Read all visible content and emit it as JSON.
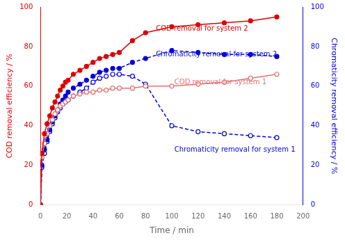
{
  "chart_data": {
    "type": "line",
    "x_label": "Time / min",
    "y_label": "COD removal efficiency / %",
    "y2_label": "Chromaticity removal efficiency / %",
    "xlim": [
      0,
      200
    ],
    "xticks": [
      0,
      20,
      40,
      60,
      80,
      100,
      120,
      140,
      160,
      180,
      200
    ],
    "ylim": [
      0,
      100
    ],
    "yticks": [
      0,
      20,
      40,
      60,
      80,
      100
    ],
    "y2lim": [
      0,
      100
    ],
    "y2ticks": [
      0,
      20,
      40,
      60,
      80,
      100
    ],
    "grid": false,
    "x": [
      0,
      1,
      3,
      5,
      7,
      9,
      11,
      13,
      15,
      17,
      19,
      21,
      25,
      30,
      35,
      40,
      45,
      50,
      55,
      60,
      70,
      80,
      100,
      120,
      140,
      160,
      180
    ],
    "series": [
      {
        "color": "#dd0000",
        "marker": "circle",
        "line_style": "solid",
        "values": [
          0,
          26,
          36,
          41,
          45,
          49,
          52,
          55,
          58,
          60,
          62,
          63,
          66,
          68,
          70,
          72,
          74,
          75,
          76,
          77,
          83,
          87,
          90,
          91,
          92,
          93,
          95
        ]
      },
      {
        "color": "#e07070",
        "marker": "open circle",
        "line_style": "solid",
        "values": [
          0,
          24,
          31,
          36,
          40,
          43,
          46,
          48,
          50,
          51,
          52,
          53,
          55,
          56,
          57,
          57,
          58,
          58,
          59,
          59,
          59,
          60,
          60,
          61,
          62,
          64,
          66
        ]
      },
      {
        "color": "#0000dd",
        "marker": "circle",
        "line_style": "dashed",
        "axis": "y2",
        "values": [
          0,
          20,
          28,
          33,
          38,
          42,
          45,
          48,
          51,
          53,
          55,
          57,
          59,
          61,
          63,
          65,
          67,
          68,
          69,
          69,
          72,
          74,
          78,
          77,
          76,
          76,
          75
        ]
      },
      {
        "color": "#0000dd",
        "marker": "open circle",
        "line_style": "dashed",
        "axis": "y2",
        "values": [
          0,
          19,
          26,
          32,
          37,
          41,
          44,
          47,
          49,
          51,
          52,
          53,
          55,
          57,
          59,
          62,
          64,
          65,
          66,
          66,
          65,
          61,
          40,
          37,
          36,
          35,
          34
        ]
      }
    ],
    "annotations": [
      {
        "x": 88,
        "y": 89,
        "text": "COD removal for system 2",
        "color": "#dd0000"
      },
      {
        "x": 88,
        "y": 76,
        "text": "Chromaticity removal for system 2",
        "color": "#0000dd"
      },
      {
        "x": 102,
        "y": 62,
        "text": "COD removal for system 1",
        "color": "#e07070"
      },
      {
        "x": 102,
        "y": 28,
        "text": "Chromaticity removal for system 1",
        "color": "#0000dd"
      }
    ]
  }
}
